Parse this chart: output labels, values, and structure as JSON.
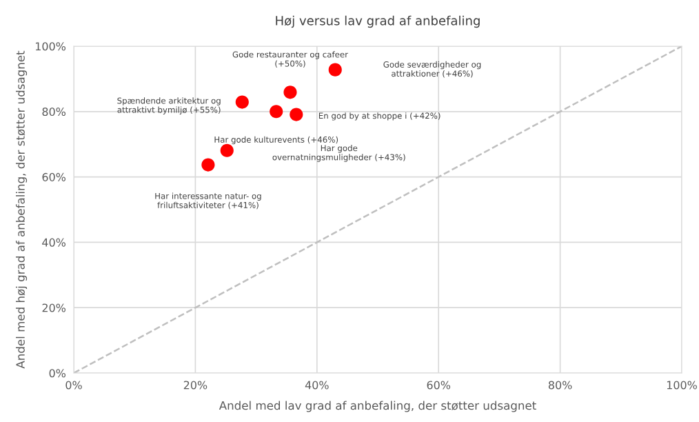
{
  "chart_data": {
    "type": "scatter",
    "title": "Høj versus lav grad af anbefaling",
    "xlabel": "Andel med lav grad af anbefaling, der støtter udsagnet",
    "ylabel": "Andel med høj grad af anbefaling, der støtter udsagnet",
    "series": [
      {
        "type": "scatter",
        "color": "#ff0000",
        "marker": "circle",
        "x": [
          22.1,
          25.2,
          33.3,
          27.7,
          35.6,
          36.6,
          43.0
        ],
        "values": [
          63.7,
          68.1,
          80.0,
          82.9,
          85.9,
          79.1,
          92.8
        ]
      },
      {
        "type": "line",
        "color": "#bfbfbf",
        "line_style": "dashed",
        "marker": "none",
        "x": [
          0,
          100
        ],
        "values": [
          0,
          100
        ]
      }
    ],
    "annotations": [
      "Har interessante natur- og\nfriluftsaktiviteter (+41%)",
      "Har gode\novernatningsmuligheder (+43%)",
      "Har gode kulturevents (+46%)",
      "Spændende arkitektur og\nattraktivt bymiljø (+55%)",
      "Gode restauranter og cafeer\n(+50%)",
      "En god by at shoppe i (+42%)",
      "Gode seværdigheder og\nattraktioner (+46%)"
    ],
    "xlim": [
      0,
      100
    ],
    "ylim": [
      0,
      100
    ],
    "xticks": [
      {
        "value": 0,
        "label": "0%"
      },
      {
        "value": 20,
        "label": "20%"
      },
      {
        "value": 40,
        "label": "40%"
      },
      {
        "value": 60,
        "label": "60%"
      },
      {
        "value": 80,
        "label": "80%"
      },
      {
        "value": 100,
        "label": "100%"
      }
    ],
    "yticks": [
      {
        "value": 0,
        "label": "0%"
      },
      {
        "value": 20,
        "label": "20%"
      },
      {
        "value": 40,
        "label": "40%"
      },
      {
        "value": 60,
        "label": "60%"
      },
      {
        "value": 80,
        "label": "80%"
      },
      {
        "value": 100,
        "label": "100%"
      }
    ],
    "grid": true,
    "legend": false
  }
}
